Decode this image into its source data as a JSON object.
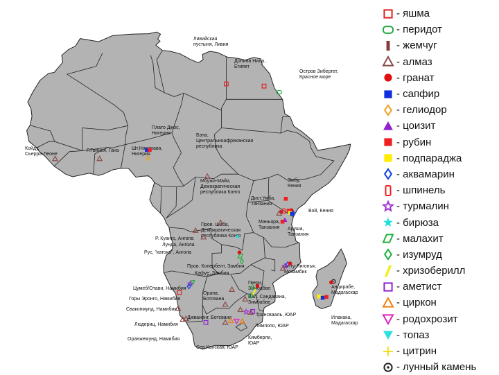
{
  "legend": [
    {
      "key": "jasper",
      "label": "- яшма",
      "shape": "square-outline",
      "color": "#e02020"
    },
    {
      "key": "peridot",
      "label": "- перидот",
      "shape": "rounded-outline",
      "color": "#22aa44"
    },
    {
      "key": "pearl",
      "label": "- жемчуг",
      "shape": "bar",
      "color": "#8b3a3a"
    },
    {
      "key": "diamond",
      "label": "- алмаз",
      "shape": "triangle-outline",
      "color": "#8b4a4a"
    },
    {
      "key": "garnet",
      "label": "- гранат",
      "shape": "circle",
      "color": "#e01010"
    },
    {
      "key": "sapphire",
      "label": "- сапфир",
      "shape": "square",
      "color": "#1030e0"
    },
    {
      "key": "heliodor",
      "label": "- гелиодор",
      "shape": "diamond-outline",
      "color": "#f0a020"
    },
    {
      "key": "zoisite",
      "label": "- цоизит",
      "shape": "triangle",
      "color": "#9020d0"
    },
    {
      "key": "ruby",
      "label": "- рубин",
      "shape": "square",
      "color": "#f02020"
    },
    {
      "key": "padparadscha",
      "label": "- подпараджа",
      "shape": "square",
      "color": "#ffee00"
    },
    {
      "key": "aquamarine",
      "label": "- аквамарин",
      "shape": "diamond-outline",
      "color": "#1040e0"
    },
    {
      "key": "spinel",
      "label": "- шпинель",
      "shape": "tall-outline",
      "color": "#f02020"
    },
    {
      "key": "tourmaline",
      "label": "- турмалин",
      "shape": "star-outline",
      "color": "#a030d0"
    },
    {
      "key": "turquoise",
      "label": "- бирюза",
      "shape": "star",
      "color": "#20e0e0"
    },
    {
      "key": "malachite",
      "label": "- малахит",
      "shape": "parallelogram",
      "color": "#20b040"
    },
    {
      "key": "emerald",
      "label": "- изумруд",
      "shape": "diamond-outline",
      "color": "#20b040"
    },
    {
      "key": "chrysoberyl",
      "label": "- хризоберилл",
      "shape": "slash",
      "color": "#f0f020"
    },
    {
      "key": "amethyst",
      "label": "- аметист",
      "shape": "square-outline",
      "color": "#9020d0"
    },
    {
      "key": "zircon",
      "label": "- циркон",
      "shape": "triangle-outline",
      "color": "#f08010"
    },
    {
      "key": "rhodochrosite",
      "label": "- родохрозит",
      "shape": "inv-triangle-outline",
      "color": "#e020c0"
    },
    {
      "key": "topaz",
      "label": "- топаз",
      "shape": "inv-triangle",
      "color": "#30e0e0"
    },
    {
      "key": "citrine",
      "label": "- цитрин",
      "shape": "plus",
      "color": "#f0e020"
    },
    {
      "key": "moonstone",
      "label": "- лунный камень",
      "shape": "target",
      "color": "#222222"
    }
  ],
  "places": [
    {
      "id": "libyan-desert",
      "lines": [
        "Ливийская",
        "пустыня, Ливия"
      ]
    },
    {
      "id": "nile-valley",
      "lines": [
        "Долина Нила,",
        "Египет"
      ]
    },
    {
      "id": "zabargad",
      "lines": [
        "Остров Зибергет,",
        "Красное море"
      ]
    },
    {
      "id": "jos-plateau",
      "lines": [
        "Плато Джос,",
        "Нигерия"
      ]
    },
    {
      "id": "kaduna",
      "lines": [
        "Шт.Насарава,",
        "Нигерия"
      ]
    },
    {
      "id": "guinea",
      "lines": [
        "Р.Гвинея, Гана"
      ]
    },
    {
      "id": "koidu",
      "lines": [
        "Койду,",
        "Сьерра-Леоне"
      ]
    },
    {
      "id": "bangui",
      "lines": [
        "Бэна,",
        "Центральноафриканская",
        "республика"
      ]
    },
    {
      "id": "embu",
      "lines": [
        "Эмбу,",
        "Кения"
      ]
    },
    {
      "id": "mbuji-mayi",
      "lines": [
        "Мбужи-Майи,",
        "Демократическая",
        "республика Конго"
      ]
    },
    {
      "id": "mwadui",
      "lines": [
        "Дист.Умба,",
        "Танзания"
      ]
    },
    {
      "id": "voi",
      "lines": [
        "Вой, Кения"
      ]
    },
    {
      "id": "shaba",
      "lines": [
        "Пров. Шаба,",
        "Демократическая",
        "республика Конго"
      ]
    },
    {
      "id": "manyara",
      "lines": [
        "Маньяра,",
        "Танзания"
      ]
    },
    {
      "id": "arusha",
      "lines": [
        "Аруша,",
        "Танзания"
      ]
    },
    {
      "id": "cuango",
      "lines": [
        "Р. Куанго, Ангола"
      ]
    },
    {
      "id": "lunda",
      "lines": [
        "Лунда, Ангола"
      ]
    },
    {
      "id": "catoca",
      "lines": [
        "Рус, \"катока\", Ангола"
      ]
    },
    {
      "id": "copperbelt",
      "lines": [
        "Пров. Копербелт, Замбия"
      ]
    },
    {
      "id": "kafue",
      "lines": [
        "Кафуе, Замбия"
      ]
    },
    {
      "id": "alto-ligonha",
      "lines": [
        "Алту-Лигонья,",
        "Мозамбик"
      ]
    },
    {
      "id": "tsumeb",
      "lines": [
        "Цумеб/Отави, Намибия"
      ]
    },
    {
      "id": "erongo",
      "lines": [
        "Горы Эронго, Намибия"
      ]
    },
    {
      "id": "swakopmund",
      "lines": [
        "Свакопмунд, Намибия"
      ]
    },
    {
      "id": "orapa",
      "lines": [
        "Орапа,",
        "Ботсвана"
      ]
    },
    {
      "id": "gwanda",
      "lines": [
        "Гвери,",
        "Зимбабве"
      ]
    },
    {
      "id": "sandawana",
      "lines": [
        "Вал. Сандавана,",
        "Зимбабве"
      ]
    },
    {
      "id": "jwaneng",
      "lines": [
        "Джваненг, Ботсвана"
      ]
    },
    {
      "id": "luderitz",
      "lines": [
        "Людериц, Намибия"
      ]
    },
    {
      "id": "transvaal",
      "lines": [
        "Трансвааль, ЮАР"
      ]
    },
    {
      "id": "limpopo",
      "lines": [
        "Лимпопо, ЮАР"
      ]
    },
    {
      "id": "oranjemund",
      "lines": [
        "Оранжемунд, Намибия"
      ]
    },
    {
      "id": "kimberley",
      "lines": [
        "Кимберли,",
        "ЮАР"
      ]
    },
    {
      "id": "northern-cape",
      "lines": [
        "Сев.Капская, ЮАР"
      ]
    },
    {
      "id": "antsirabe",
      "lines": [
        "Анцирабе,",
        "Мадагаскар"
      ]
    },
    {
      "id": "ilakaka",
      "lines": [
        "Илакака,",
        "Мадагаскар"
      ]
    }
  ],
  "markers": [
    {
      "gem": "jasper",
      "lon": 25.0,
      "lat": 25.5
    },
    {
      "gem": "jasper",
      "lon": 33.0,
      "lat": 25.0
    },
    {
      "gem": "peridot",
      "lon": 36.2,
      "lat": 23.6
    },
    {
      "gem": "sapphire",
      "lon": 8.2,
      "lat": 10.5
    },
    {
      "gem": "ruby",
      "lon": 8.8,
      "lat": 10.5
    },
    {
      "gem": "heliodor",
      "lon": 8.4,
      "lat": 8.6
    },
    {
      "gem": "diamond",
      "lon": -11.2,
      "lat": 8.5
    },
    {
      "gem": "diamond",
      "lon": -1.8,
      "lat": 8.5
    },
    {
      "gem": "diamond",
      "lon": 21.0,
      "lat": 4.5
    },
    {
      "gem": "diamond",
      "lon": 23.8,
      "lat": -6.0
    },
    {
      "gem": "diamond",
      "lon": 18.5,
      "lat": -7.8
    },
    {
      "gem": "diamond",
      "lon": 20.2,
      "lat": -9.3
    },
    {
      "gem": "diamond",
      "lon": 26.2,
      "lat": -21.2
    },
    {
      "gem": "diamond",
      "lon": 24.8,
      "lat": -24.6
    },
    {
      "gem": "diamond",
      "lon": 28.0,
      "lat": -25.8
    },
    {
      "gem": "diamond",
      "lon": 24.8,
      "lat": -28.7
    },
    {
      "gem": "diamond",
      "lon": 15.8,
      "lat": -28.0
    },
    {
      "gem": "diamond",
      "lon": 16.5,
      "lat": -27.8
    },
    {
      "gem": "ruby",
      "lon": 37.6,
      "lat": -0.6
    },
    {
      "gem": "garnet",
      "lon": 38.8,
      "lat": -3.2
    },
    {
      "gem": "ruby",
      "lon": 38.2,
      "lat": -3.3
    },
    {
      "gem": "padparadscha",
      "lon": 38.5,
      "lat": -3.8
    },
    {
      "gem": "sapphire",
      "lon": 38.9,
      "lat": -4.0
    },
    {
      "gem": "aquamarine",
      "lon": 39.2,
      "lat": -3.9
    },
    {
      "gem": "spinel",
      "lon": 37.2,
      "lat": -3.4
    },
    {
      "gem": "garnet",
      "lon": 36.6,
      "lat": -3.6
    },
    {
      "gem": "diamond",
      "lon": 36.2,
      "lat": -3.9
    },
    {
      "gem": "zoisite",
      "lon": 37.4,
      "lat": -5.4
    },
    {
      "gem": "ruby",
      "lon": 36.9,
      "lat": -5.8
    },
    {
      "gem": "turquoise",
      "lon": 27.4,
      "lat": -9.2
    },
    {
      "gem": "garnet",
      "lon": 27.8,
      "lat": -12.8
    },
    {
      "gem": "malachite",
      "lon": 28.0,
      "lat": -13.6
    },
    {
      "gem": "emerald",
      "lon": 28.3,
      "lat": -14.8
    },
    {
      "gem": "aquamarine",
      "lon": 38.0,
      "lat": -15.5
    },
    {
      "gem": "tourmaline",
      "lon": 37.4,
      "lat": -15.9
    },
    {
      "gem": "garnet",
      "lon": 38.5,
      "lat": -15.3
    },
    {
      "gem": "diamond",
      "lon": 37.0,
      "lat": -16.4
    },
    {
      "gem": "malachite",
      "lon": 17.8,
      "lat": -19.6
    },
    {
      "gem": "tourmaline",
      "lon": 17.4,
      "lat": -19.9
    },
    {
      "gem": "aquamarine",
      "lon": 17.1,
      "lat": -20.5
    },
    {
      "gem": "jasper",
      "lon": 15.1,
      "lat": -21.9
    },
    {
      "gem": "diamond",
      "lon": 14.8,
      "lat": -25.5
    },
    {
      "gem": "emerald",
      "lon": 30.6,
      "lat": -20.7
    },
    {
      "gem": "garnet",
      "lon": 31.6,
      "lat": -20.4
    },
    {
      "gem": "emerald",
      "lon": 30.2,
      "lat": -22.6
    },
    {
      "gem": "chrysoberyl",
      "lon": 30.9,
      "lat": -21.8
    },
    {
      "gem": "diamond",
      "lon": 29.0,
      "lat": -23.4
    },
    {
      "gem": "tourmaline",
      "lon": 29.2,
      "lat": -26.3
    },
    {
      "gem": "diamond",
      "lon": 30.2,
      "lat": -26.4
    },
    {
      "gem": "amethyst",
      "lon": 30.6,
      "lat": -26.2
    },
    {
      "gem": "zircon",
      "lon": 26.0,
      "lat": -28.3
    },
    {
      "gem": "rhodochrosite",
      "lon": 27.2,
      "lat": -28.4
    },
    {
      "gem": "zircon",
      "lon": 28.4,
      "lat": -28.4
    },
    {
      "gem": "amethyst",
      "lon": 20.7,
      "lat": -28.7
    },
    {
      "gem": "moonstone",
      "lon": 47.7,
      "lat": -19.4
    },
    {
      "gem": "garnet",
      "lon": 47.2,
      "lat": -19.6
    },
    {
      "gem": "padparadscha",
      "lon": 44.6,
      "lat": -22.8
    },
    {
      "gem": "sapphire",
      "lon": 45.4,
      "lat": -23.1
    },
    {
      "gem": "ruby",
      "lon": 46.2,
      "lat": -22.9
    }
  ],
  "colors": {
    "land": "#b3b3b3",
    "border": "#222222",
    "sea": "#ffffff"
  }
}
